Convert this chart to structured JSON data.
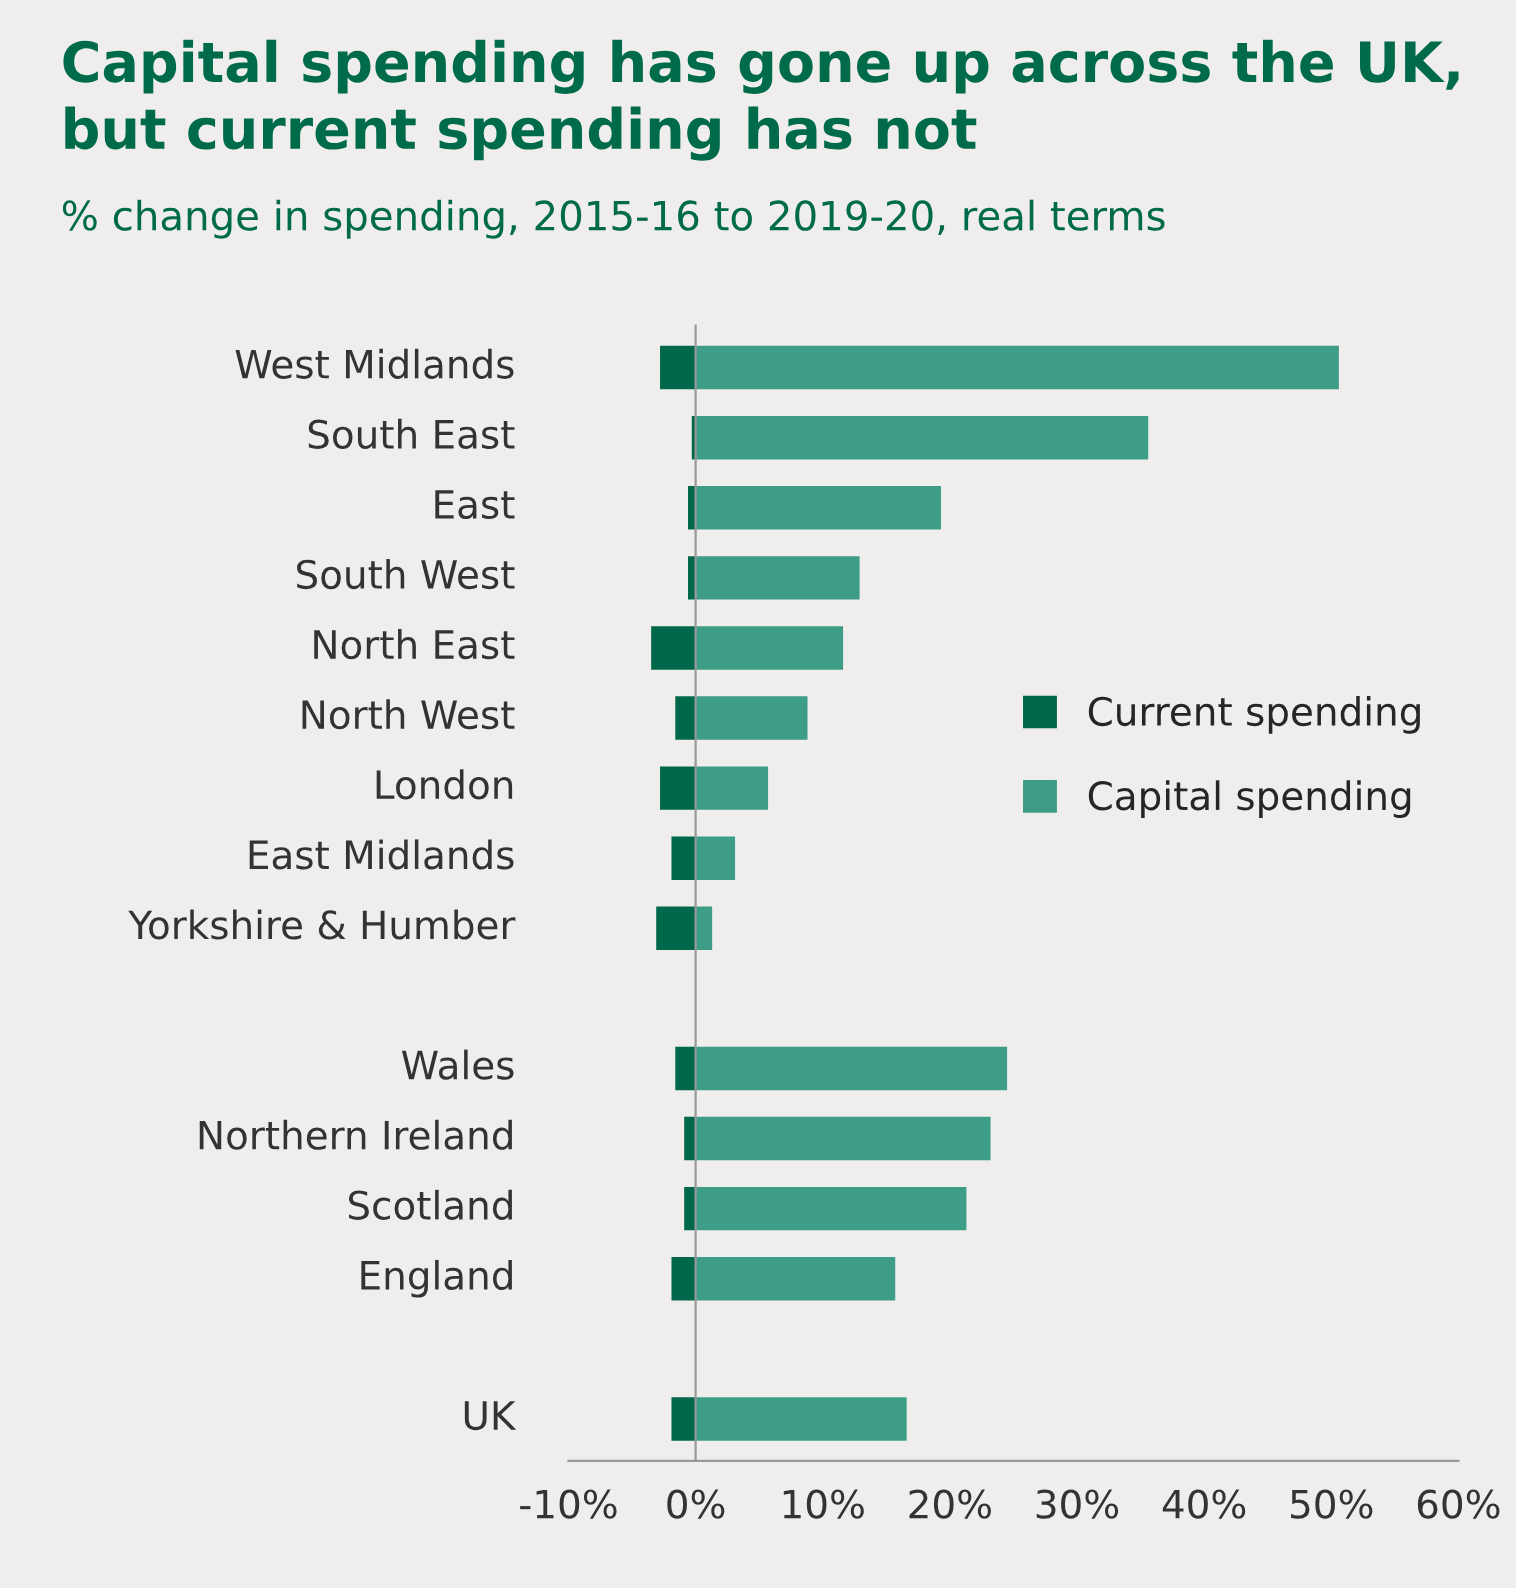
{
  "chart_data": {
    "type": "bar",
    "orientation": "horizontal",
    "title": "Capital spending has gone up across the UK,\nbut current spending has not",
    "subtitle": "% change in spending, 2015-16 to 2019-20, real terms",
    "categories": [
      "West Midlands",
      "South East",
      "East",
      "South West",
      "North East",
      "North West",
      "London",
      "East Midlands",
      "Yorkshire & Humber",
      null,
      "Wales",
      "Northern Ireland",
      "Scotland",
      "England",
      null,
      "UK"
    ],
    "series": [
      {
        "name": "Current spending",
        "color": "#00684a",
        "values": [
          -2.8,
          -0.3,
          -0.6,
          -0.6,
          -3.5,
          -1.6,
          -2.8,
          -1.9,
          -3.1,
          null,
          -1.6,
          -0.9,
          -0.9,
          -1.9,
          null,
          -1.9
        ]
      },
      {
        "name": "Capital spending",
        "color": "#3e9d87",
        "values": [
          50.6,
          35.6,
          19.3,
          12.9,
          11.6,
          8.8,
          5.7,
          3.1,
          1.3,
          null,
          24.5,
          23.2,
          21.3,
          15.7,
          null,
          16.6
        ]
      }
    ],
    "xlim": [
      -10,
      60
    ],
    "xticks": [
      {
        "value": -10,
        "label": "-10%"
      },
      {
        "value": 0,
        "label": "0%"
      },
      {
        "value": 10,
        "label": "10%"
      },
      {
        "value": 20,
        "label": "20%"
      },
      {
        "value": 30,
        "label": "30%"
      },
      {
        "value": 40,
        "label": "40%"
      },
      {
        "value": 50,
        "label": "50%"
      },
      {
        "value": 60,
        "label": "60%"
      }
    ],
    "legend": "right",
    "stacked": true
  }
}
